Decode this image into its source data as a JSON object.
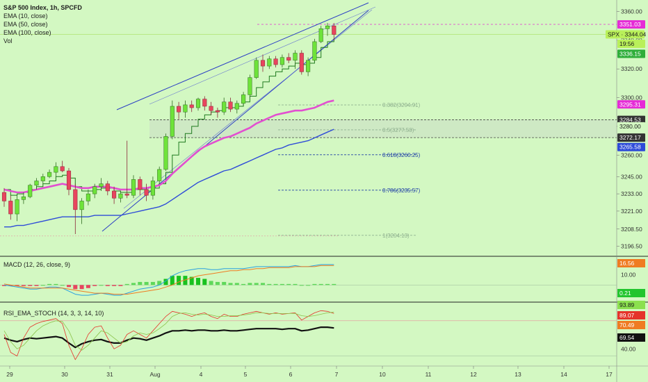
{
  "header": {
    "title": "S&P 500 Index, 1h, SPCFD",
    "indicators": [
      "EMA (10, close)",
      "EMA (50, close)",
      "EMA (100, close)",
      "Vol"
    ]
  },
  "macd_pane": {
    "label": "MACD (12, 26, close, 9)"
  },
  "rsi_pane": {
    "label": "RSI_EMA_STOCH (14, 3, 3, 14, 10)"
  },
  "colors": {
    "background": "#d3f8c2",
    "up_candle": "#6ee33a",
    "down_candle": "#e8455e",
    "ema10": "#1f7a1f",
    "ema50": "#e24fd0",
    "ema100": "#2e4bd8",
    "channel": "#2a3dc4",
    "fib": "#1f3fa6"
  },
  "chart_data": [
    {
      "type": "candlestick",
      "title": "S&P 500 Index, 1h, SPCFD",
      "ylim": [
        3190,
        3368
      ],
      "y_ticks": [
        "3360.00",
        "3340.00",
        "3320.00",
        "3300.00",
        "3280.00",
        "3260.00",
        "3245.00",
        "3233.00",
        "3221.00",
        "3208.50",
        "3196.50"
      ],
      "x_ticks": [
        "29",
        "30",
        "31",
        "Aug",
        "4",
        "5",
        "6",
        "7",
        "10",
        "11",
        "12",
        "13",
        "14",
        "17"
      ],
      "candles": [
        [
          3234,
          3237,
          3224,
          3228
        ],
        [
          3228,
          3232,
          3215,
          3219
        ],
        [
          3219,
          3232,
          3214,
          3229
        ],
        [
          3229,
          3234,
          3226,
          3231
        ],
        [
          3231,
          3240,
          3230,
          3239
        ],
        [
          3239,
          3244,
          3236,
          3242
        ],
        [
          3242,
          3247,
          3240,
          3245
        ],
        [
          3245,
          3250,
          3244,
          3248
        ],
        [
          3248,
          3255,
          3245,
          3252
        ],
        [
          3252,
          3256,
          3248,
          3249
        ],
        [
          3249,
          3251,
          3232,
          3236
        ],
        [
          3236,
          3240,
          3205,
          3222
        ],
        [
          3222,
          3230,
          3212,
          3228
        ],
        [
          3228,
          3236,
          3225,
          3233
        ],
        [
          3233,
          3240,
          3230,
          3238
        ],
        [
          3238,
          3244,
          3235,
          3240
        ],
        [
          3240,
          3242,
          3232,
          3235
        ],
        [
          3235,
          3238,
          3226,
          3230
        ],
        [
          3230,
          3235,
          3227,
          3233
        ],
        [
          3233,
          3270,
          3230,
          3232
        ],
        [
          3232,
          3246,
          3230,
          3243
        ],
        [
          3243,
          3245,
          3232,
          3236
        ],
        [
          3236,
          3240,
          3228,
          3232
        ],
        [
          3232,
          3245,
          3229,
          3242
        ],
        [
          3242,
          3252,
          3240,
          3250
        ],
        [
          3250,
          3275,
          3249,
          3273
        ],
        [
          3273,
          3298,
          3271,
          3294
        ],
        [
          3294,
          3297,
          3285,
          3290
        ],
        [
          3290,
          3298,
          3286,
          3295
        ],
        [
          3295,
          3298,
          3290,
          3293
        ],
        [
          3293,
          3300,
          3291,
          3299
        ],
        [
          3299,
          3301,
          3291,
          3294
        ],
        [
          3294,
          3297,
          3288,
          3291
        ],
        [
          3291,
          3293,
          3286,
          3290
        ],
        [
          3290,
          3300,
          3288,
          3297
        ],
        [
          3297,
          3300,
          3290,
          3292
        ],
        [
          3292,
          3298,
          3289,
          3296
        ],
        [
          3296,
          3304,
          3294,
          3302
        ],
        [
          3302,
          3316,
          3300,
          3314
        ],
        [
          3314,
          3328,
          3313,
          3326
        ],
        [
          3326,
          3330,
          3318,
          3322
        ],
        [
          3322,
          3329,
          3320,
          3327
        ],
        [
          3327,
          3329,
          3321,
          3323
        ],
        [
          3323,
          3330,
          3321,
          3328
        ],
        [
          3328,
          3331,
          3324,
          3326
        ],
        [
          3326,
          3333,
          3320,
          3331
        ],
        [
          3331,
          3333,
          3316,
          3318
        ],
        [
          3318,
          3328,
          3315,
          3326
        ],
        [
          3326,
          3341,
          3325,
          3339
        ],
        [
          3339,
          3350,
          3338,
          3348
        ],
        [
          3348,
          3352,
          3343,
          3350
        ],
        [
          3350,
          3352,
          3340,
          3344
        ]
      ],
      "series": [
        {
          "name": "EMA (10, close)",
          "values": [
            3236,
            3232,
            3233,
            3234,
            3236,
            3238,
            3240,
            3242,
            3245,
            3246,
            3244,
            3238,
            3235,
            3235,
            3236,
            3237,
            3237,
            3235,
            3234,
            3234,
            3236,
            3236,
            3235,
            3237,
            3240,
            3248,
            3260,
            3269,
            3275,
            3280,
            3285,
            3288,
            3290,
            3291,
            3293,
            3293,
            3294,
            3297,
            3301,
            3307,
            3311,
            3315,
            3318,
            3320,
            3322,
            3324,
            3323,
            3324,
            3328,
            3335,
            3339,
            3341
          ]
        },
        {
          "name": "EMA (50, close)",
          "values": [
            3236,
            3235,
            3234,
            3234,
            3235,
            3236,
            3237,
            3238,
            3239,
            3240,
            3239,
            3238,
            3237,
            3237,
            3238,
            3238,
            3238,
            3237,
            3236,
            3236,
            3236,
            3237,
            3237,
            3238,
            3239,
            3242,
            3247,
            3251,
            3255,
            3259,
            3263,
            3266,
            3268,
            3270,
            3272,
            3273,
            3275,
            3277,
            3279,
            3282,
            3284,
            3286,
            3288,
            3289,
            3290,
            3291,
            3291,
            3292,
            3293,
            3295,
            3297,
            3298
          ]
        },
        {
          "name": "EMA (100, close)",
          "values": [
            3210,
            3210,
            3211,
            3211,
            3212,
            3213,
            3214,
            3215,
            3216,
            3217,
            3217,
            3217,
            3217,
            3217,
            3218,
            3218,
            3218,
            3218,
            3218,
            3219,
            3220,
            3221,
            3222,
            3223,
            3224,
            3226,
            3229,
            3232,
            3235,
            3238,
            3241,
            3243,
            3245,
            3247,
            3249,
            3250,
            3252,
            3254,
            3256,
            3258,
            3260,
            3262,
            3264,
            3265,
            3267,
            3268,
            3269,
            3270,
            3272,
            3274,
            3276,
            3278
          ]
        }
      ],
      "fib_levels": [
        {
          "label": "0.382(3294.91)",
          "value": 3294.91
        },
        {
          "label": "0.5(3277.58)",
          "value": 3277.58
        },
        {
          "label": "0.618(3260.25)",
          "value": 3260.25
        },
        {
          "label": "0.786(3235.57)",
          "value": 3235.57
        },
        {
          "label": "1(3204.13)",
          "value": 3204.13
        }
      ],
      "price_tags": [
        {
          "label": "3351.03",
          "value": 3351.03,
          "color": "#e52bd6"
        },
        {
          "label": "SPX · 3344.04",
          "value": 3344.04,
          "color": "#b9f05a"
        },
        {
          "label": "19:56",
          "value": 3337.5,
          "color": "#b9f05a"
        },
        {
          "label": "3336.15",
          "value": 3330.5,
          "color": "#2fae3a"
        },
        {
          "label": "3295.31",
          "value": 3295.31,
          "color": "#e52bd6"
        },
        {
          "label": "3284.53",
          "value": 3284.53,
          "color": "#333333"
        },
        {
          "label": "3280.00",
          "value": 3280.0,
          "color": "#d3f8c2"
        },
        {
          "label": "3272.17",
          "value": 3272.17,
          "color": "#333333"
        },
        {
          "label": "3265.58",
          "value": 3265.58,
          "color": "#2e4bd8"
        }
      ]
    },
    {
      "type": "bar",
      "title": "MACD (12, 26, close, 9)",
      "y_ticks": [
        "10.00"
      ],
      "macd_line": [
        0,
        -1,
        -2,
        -3,
        -4,
        -4,
        -3,
        -2,
        -2,
        -3,
        -6,
        -9,
        -10,
        -10,
        -9,
        -8,
        -9,
        -10,
        -10,
        -8,
        -6,
        -4,
        -3,
        -2,
        0,
        4,
        9,
        12,
        14,
        15,
        16,
        16,
        15,
        15,
        16,
        16,
        16,
        16,
        17,
        18,
        18,
        18,
        18,
        18,
        18,
        19,
        18,
        18,
        19,
        20,
        20,
        20
      ],
      "signal_line": [
        1,
        0,
        -1,
        -2,
        -3,
        -3,
        -3,
        -3,
        -3,
        -3,
        -4,
        -5,
        -6,
        -7,
        -8,
        -8,
        -8,
        -9,
        -9,
        -9,
        -8,
        -7,
        -6,
        -5,
        -4,
        -2,
        0,
        3,
        5,
        7,
        9,
        10,
        11,
        12,
        13,
        14,
        14,
        15,
        15,
        16,
        16,
        17,
        17,
        17,
        17,
        18,
        18,
        18,
        18,
        19,
        19,
        19
      ],
      "values": [
        -1,
        -1,
        -1,
        -1,
        -1,
        -1,
        0,
        1,
        1,
        0,
        -2,
        -4,
        -4,
        -3,
        -1,
        0,
        -1,
        -1,
        -1,
        1,
        2,
        3,
        3,
        3,
        4,
        6,
        9,
        9,
        9,
        8,
        7,
        6,
        4,
        3,
        3,
        2,
        2,
        1,
        2,
        2,
        2,
        1,
        1,
        1,
        1,
        1,
        0,
        0,
        1,
        1,
        1,
        1
      ],
      "price_tags": [
        {
          "label": "16.56",
          "color": "#ef7c22"
        },
        {
          "label": "0.21",
          "color": "#22c52e"
        }
      ]
    },
    {
      "type": "line",
      "title": "RSI_EMA_STOCH (14, 3, 3, 14, 10)",
      "y_ticks": [
        "40.00"
      ],
      "series": [
        {
          "name": "RSI",
          "values": [
            55,
            52,
            50,
            53,
            55,
            54,
            55,
            56,
            57,
            55,
            48,
            42,
            47,
            50,
            52,
            53,
            50,
            48,
            48,
            52,
            55,
            54,
            52,
            55,
            58,
            62,
            65,
            65,
            66,
            65,
            66,
            66,
            65,
            65,
            66,
            65,
            65,
            66,
            67,
            68,
            68,
            68,
            68,
            67,
            68,
            68,
            65,
            66,
            68,
            70,
            70,
            69
          ]
        },
        {
          "name": "Stoch K",
          "values": [
            60,
            35,
            30,
            55,
            70,
            75,
            78,
            80,
            82,
            75,
            45,
            25,
            40,
            60,
            70,
            72,
            55,
            40,
            45,
            60,
            65,
            60,
            55,
            65,
            75,
            85,
            92,
            90,
            88,
            85,
            88,
            90,
            85,
            82,
            88,
            85,
            85,
            88,
            90,
            92,
            90,
            88,
            90,
            88,
            89,
            90,
            80,
            85,
            90,
            93,
            92,
            89
          ]
        },
        {
          "name": "Stoch D",
          "values": [
            65,
            50,
            40,
            45,
            55,
            65,
            72,
            76,
            79,
            78,
            65,
            45,
            38,
            45,
            55,
            65,
            62,
            55,
            48,
            50,
            58,
            62,
            60,
            62,
            68,
            75,
            85,
            89,
            90,
            88,
            87,
            88,
            87,
            85,
            85,
            86,
            86,
            87,
            88,
            90,
            90,
            89,
            89,
            89,
            89,
            89,
            86,
            85,
            86,
            88,
            90,
            91
          ]
        }
      ],
      "price_tags": [
        {
          "label": "93.89",
          "color": "#8be04e"
        },
        {
          "label": "89.07",
          "color": "#e5332a"
        },
        {
          "label": "70.49",
          "color": "#ef7c22"
        },
        {
          "label": "69.54",
          "color": "#111111"
        }
      ]
    }
  ]
}
